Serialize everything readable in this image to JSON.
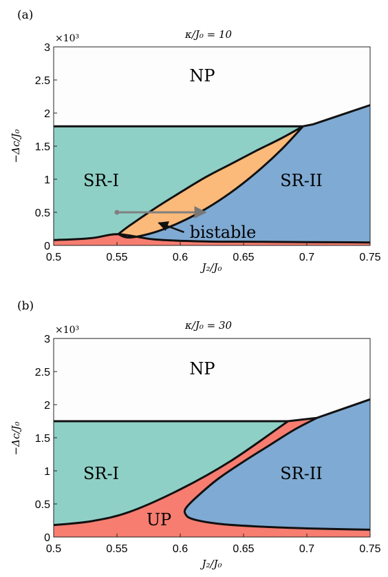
{
  "chart_data": [
    {
      "type": "area",
      "panel_label": "(a)",
      "title": "κ/J₀ = 10",
      "xlabel": "J₂/J₀",
      "ylabel": "−Δc/J₀",
      "y_multiplier": "×10³",
      "xlim": [
        0.5,
        0.75
      ],
      "ylim": [
        0,
        3
      ],
      "xticks": [
        "0.5",
        "0.55",
        "0.6",
        "0.65",
        "0.7",
        "0.75"
      ],
      "yticks": [
        "0",
        "0.5",
        "1",
        "1.5",
        "2",
        "2.5",
        "3"
      ],
      "grid": false,
      "colors": {
        "NP": "#fdfdfd",
        "SR-I": "#8fd0c6",
        "SR-II": "#7faad3",
        "UP": "#f67d70",
        "bistable": "#fbb97a"
      },
      "regions": [
        {
          "label": "NP",
          "label_at": [
            0.6,
            2.5
          ]
        },
        {
          "label": "SR-I",
          "label_at": [
            0.53,
            1.0
          ]
        },
        {
          "label": "SR-II",
          "label_at": [
            0.69,
            1.0
          ]
        },
        {
          "label": "bistable",
          "label_at": [
            0.64,
            0.3
          ]
        }
      ],
      "boundaries": {
        "np_sr1": {
          "x": [
            0.5,
            0.697
          ],
          "y": [
            1.8,
            1.8
          ]
        },
        "np_sr2": {
          "x": [
            0.697,
            0.705,
            0.75
          ],
          "y": [
            1.8,
            1.83,
            2.12
          ]
        },
        "sr1_bistable": {
          "x": [
            0.551,
            0.56,
            0.58,
            0.6,
            0.62,
            0.64,
            0.66,
            0.68,
            0.697
          ],
          "y": [
            0.17,
            0.3,
            0.56,
            0.8,
            1.03,
            1.23,
            1.43,
            1.62,
            1.8
          ]
        },
        "bistable_sr2": {
          "x": [
            0.551,
            0.56,
            0.58,
            0.6,
            0.62,
            0.64,
            0.66,
            0.68,
            0.697
          ],
          "y": [
            0.17,
            0.12,
            0.2,
            0.35,
            0.55,
            0.8,
            1.1,
            1.45,
            1.8
          ]
        },
        "up_upper": {
          "x": [
            0.5,
            0.53,
            0.551,
            0.58,
            0.62,
            0.66,
            0.7,
            0.75
          ],
          "y": [
            0.08,
            0.11,
            0.17,
            0.09,
            0.06,
            0.055,
            0.05,
            0.045
          ]
        },
        "up_lower_left": {
          "x": [
            0.5,
            0.53,
            0.551
          ],
          "y": [
            0.08,
            0.11,
            0.17
          ]
        }
      },
      "annotation": {
        "text": "bistable",
        "arrow_from": [
          0.603,
          0.2
        ],
        "arrow_to": [
          0.583,
          0.34
        ]
      },
      "sweep_arrow": {
        "x_start": 0.55,
        "x_end": 0.62,
        "y": 0.5
      }
    },
    {
      "type": "area",
      "panel_label": "(b)",
      "title": "κ/J₀ = 30",
      "xlabel": "J₂/J₀",
      "ylabel": "−Δc/J₀",
      "y_multiplier": "×10³",
      "xlim": [
        0.5,
        0.75
      ],
      "ylim": [
        0,
        3
      ],
      "xticks": [
        "0.5",
        "0.55",
        "0.6",
        "0.65",
        "0.7",
        "0.75"
      ],
      "yticks": [
        "0",
        "0.5",
        "1",
        "1.5",
        "2",
        "2.5",
        "3"
      ],
      "grid": false,
      "colors": {
        "NP": "#fdfdfd",
        "SR-I": "#8fd0c6",
        "SR-II": "#7faad3",
        "UP": "#f67d70"
      },
      "regions": [
        {
          "label": "NP",
          "label_at": [
            0.6,
            2.5
          ]
        },
        {
          "label": "SR-I",
          "label_at": [
            0.53,
            1.0
          ]
        },
        {
          "label": "SR-II",
          "label_at": [
            0.69,
            1.0
          ]
        },
        {
          "label": "UP",
          "label_at": [
            0.58,
            0.25
          ]
        }
      ],
      "boundaries": {
        "np_line": {
          "x": [
            0.5,
            0.685,
            0.708,
            0.75
          ],
          "y": [
            1.75,
            1.75,
            1.8,
            2.08
          ]
        },
        "sr1_up": {
          "x": [
            0.5,
            0.53,
            0.56,
            0.6,
            0.64,
            0.68,
            0.685
          ],
          "y": [
            0.18,
            0.24,
            0.38,
            0.72,
            1.15,
            1.68,
            1.75
          ]
        },
        "up_sr2": {
          "x": [
            0.708,
            0.69,
            0.67,
            0.65,
            0.63,
            0.615,
            0.605,
            0.604,
            0.61,
            0.63,
            0.66,
            0.7,
            0.75
          ],
          "y": [
            1.8,
            1.62,
            1.38,
            1.14,
            0.88,
            0.64,
            0.45,
            0.35,
            0.27,
            0.2,
            0.16,
            0.13,
            0.11
          ]
        }
      }
    }
  ]
}
